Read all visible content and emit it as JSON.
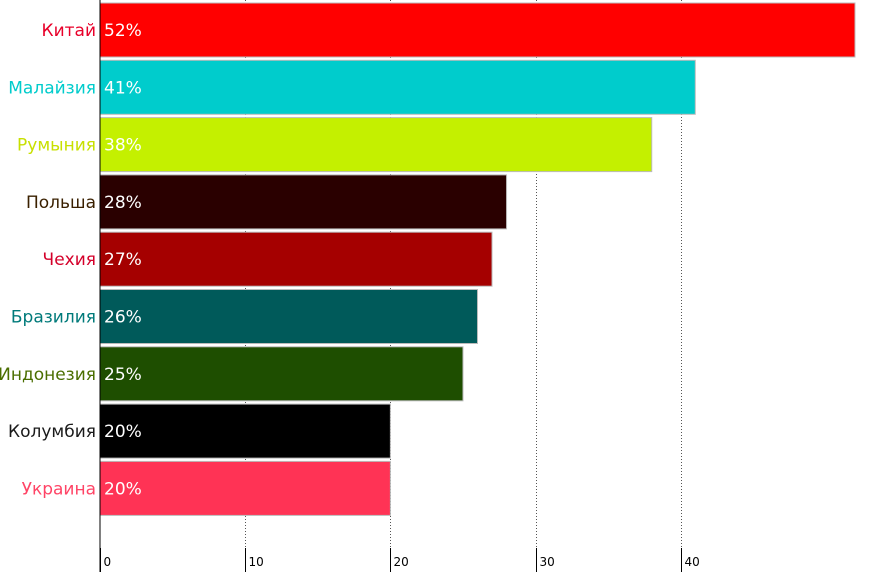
{
  "chart_data": {
    "type": "bar",
    "orientation": "horizontal",
    "categories": [
      "Китай",
      "Малайзия",
      "Румыния",
      "Польша",
      "Чехия",
      "Бразилия",
      "Индонезия",
      "Колумбия",
      "Украина"
    ],
    "values": [
      52,
      41,
      38,
      28,
      27,
      26,
      25,
      20,
      20
    ],
    "value_labels": [
      "52%",
      "41%",
      "38%",
      "28%",
      "27%",
      "26%",
      "25%",
      "20%",
      "20%"
    ],
    "bar_colors": [
      "#ff0000",
      "#00cccc",
      "#c4f000",
      "#2a0000",
      "#a50000",
      "#005a5a",
      "#1e4e00",
      "#000000",
      "#ff3355"
    ],
    "label_colors": [
      "#e8002a",
      "#00cccc",
      "#c8e000",
      "#3a2000",
      "#d4002a",
      "#007a7a",
      "#4a6e00",
      "#1a1a1a",
      "#ff4466"
    ],
    "x_ticks": [
      "0",
      "10",
      "20",
      "30",
      "40"
    ],
    "x_tick_values": [
      0,
      10,
      20,
      30,
      40
    ],
    "xlim": [
      0,
      52
    ],
    "grid": "vertical-dotted",
    "title": "",
    "xlabel": "",
    "ylabel": ""
  }
}
